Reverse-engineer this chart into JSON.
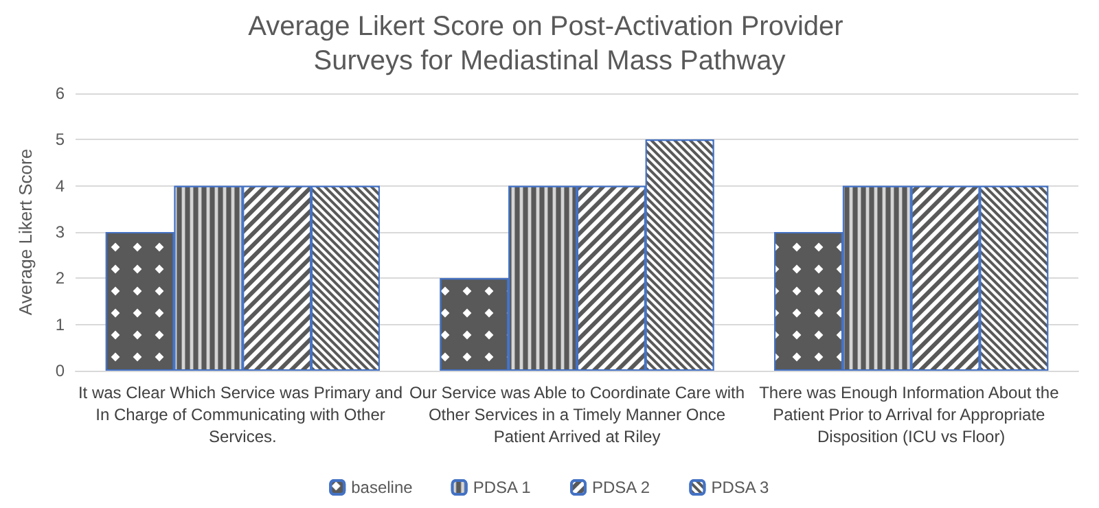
{
  "chart_data": {
    "type": "bar",
    "title": "Average Likert Score on Post-Activation Provider Surveys for Mediastinal Mass Pathway",
    "ylabel": "Average Likert Score",
    "categories": [
      "It was Clear Which Service was Primary and In Charge of Communicating with Other Services.",
      "Our Service was Able to Coordinate Care with Other Services in a Timely Manner Once Patient Arrived at Riley",
      "There was Enough Information About the Patient Prior to Arrival for Appropriate Disposition (ICU vs Floor)"
    ],
    "series": [
      {
        "name": "baseline",
        "color": "#595959",
        "values": [
          3,
          2,
          3
        ]
      },
      {
        "name": "PDSA 1",
        "color": "#595959",
        "values": [
          4,
          4,
          4
        ]
      },
      {
        "name": "PDSA 2",
        "color": "#595959",
        "values": [
          4,
          4,
          4
        ]
      },
      {
        "name": "PDSA 3",
        "color": "#595959",
        "values": [
          4,
          5,
          4
        ]
      }
    ],
    "ylim": [
      0,
      6
    ],
    "yticks": [
      0,
      1,
      2,
      3,
      4,
      5,
      6
    ],
    "grid": "y",
    "legend": "bottom"
  }
}
